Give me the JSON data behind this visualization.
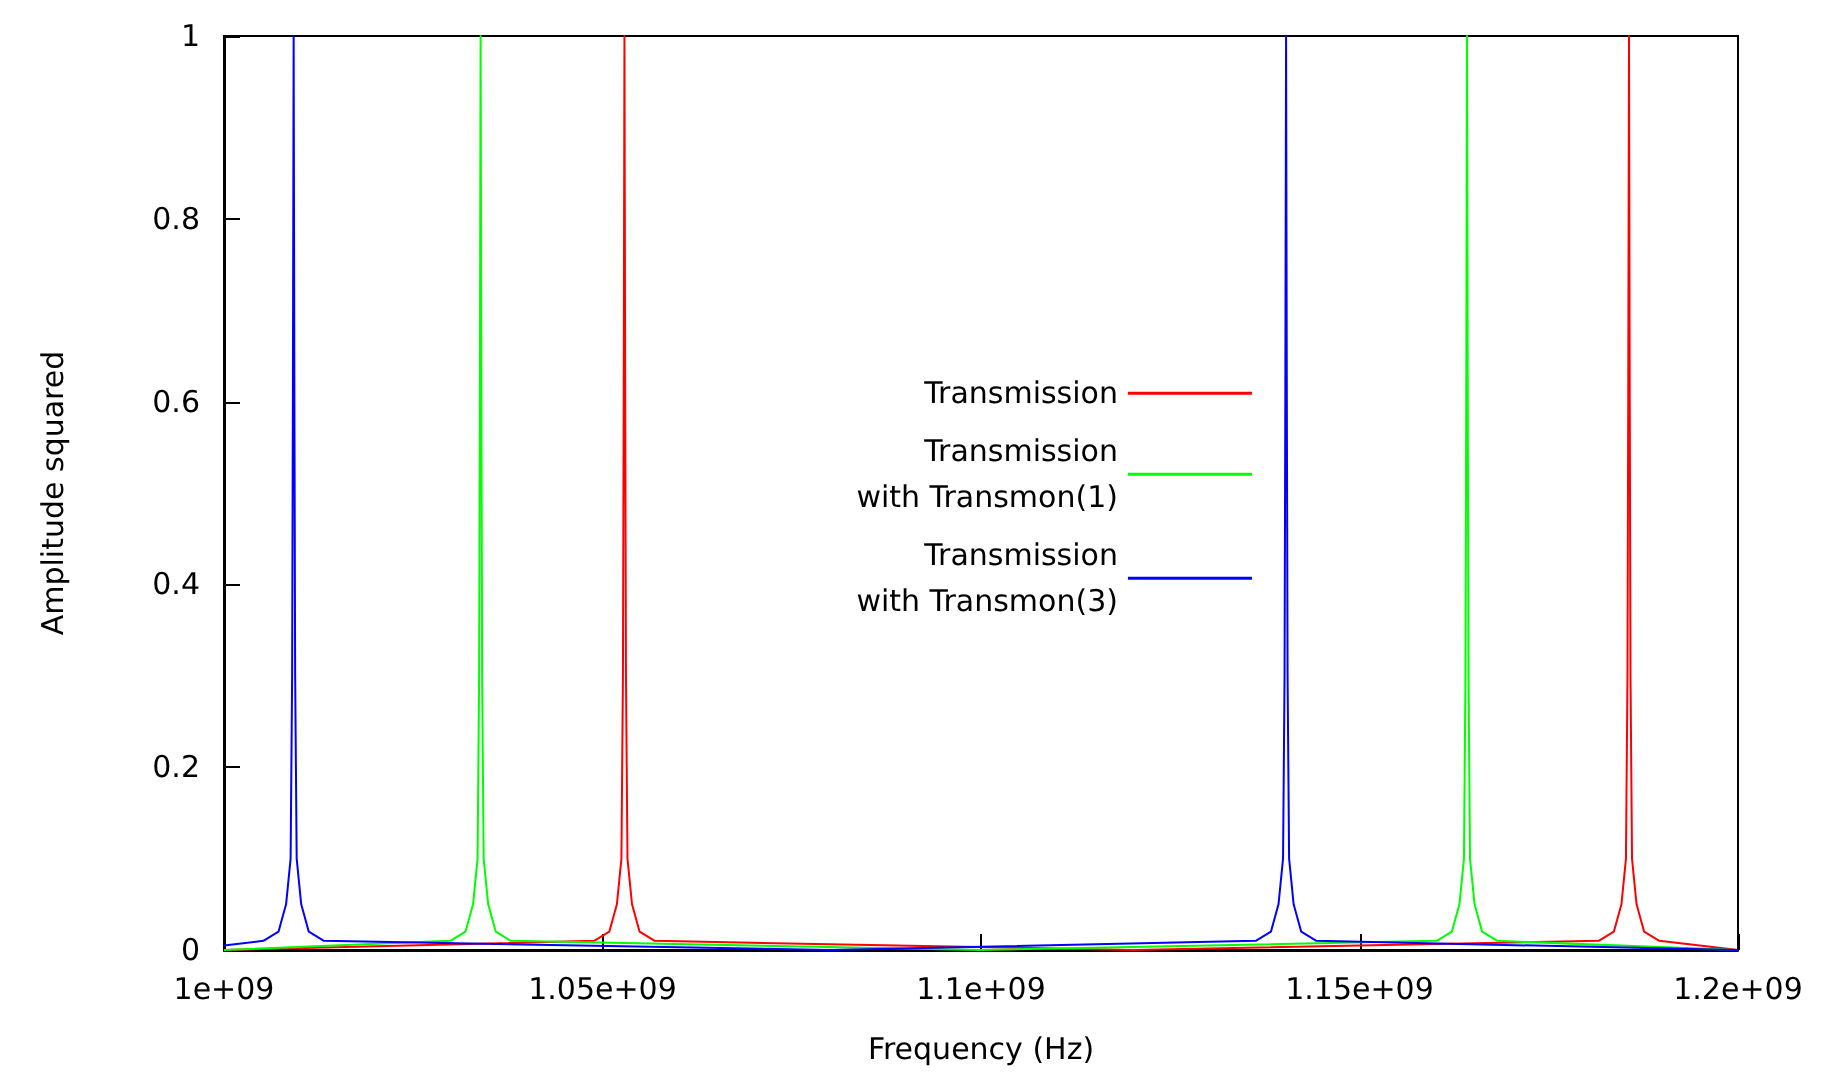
{
  "chart_data": {
    "type": "line",
    "xlabel": "Frequency (Hz)",
    "ylabel": "Amplitude squared",
    "xlim": [
      1000000000,
      1200000000
    ],
    "xticks": [
      {
        "value": 1000000000,
        "label": "1e+09"
      },
      {
        "value": 1050000000,
        "label": "1.05e+09"
      },
      {
        "value": 1100000000,
        "label": "1.1e+09"
      },
      {
        "value": 1150000000,
        "label": "1.15e+09"
      },
      {
        "value": 1200000000,
        "label": "1.2e+09"
      }
    ],
    "ylim": [
      0,
      1
    ],
    "yticks": [
      0,
      0.2,
      0.4,
      0.6,
      0.8,
      1
    ],
    "grid": false,
    "legend": "center",
    "marker": "none",
    "line_style": "solid",
    "series": [
      {
        "name": "Transmission",
        "color": "#ff0000",
        "x": [
          1000000000,
          1048900000,
          1050900000,
          1051900000,
          1052500000,
          1052700000,
          1052800000,
          1052900000,
          1053000000,
          1053100000,
          1053300000,
          1053900000,
          1054900000,
          1056900000,
          1120000000,
          1181600000,
          1183600000,
          1184600000,
          1185200000,
          1185400000,
          1185500000,
          1185600000,
          1185700000,
          1185800000,
          1186000000,
          1186600000,
          1187600000,
          1189600000,
          1200000000
        ],
        "values": [
          0,
          0.01,
          0.02,
          0.05,
          0.1,
          0.3,
          0.6,
          1,
          0.6,
          0.3,
          0.1,
          0.05,
          0.02,
          0.01,
          0,
          0.01,
          0.02,
          0.05,
          0.1,
          0.3,
          0.6,
          1,
          0.6,
          0.3,
          0.1,
          0.05,
          0.02,
          0.01,
          0
        ]
      },
      {
        "name": "Transmission\nwith Transmon(1)",
        "color": "#00ff00",
        "x": [
          1000000000,
          1029900000,
          1031900000,
          1032900000,
          1033500000,
          1033700000,
          1033800000,
          1033900000,
          1034000000,
          1034100000,
          1034300000,
          1034900000,
          1035900000,
          1037900000,
          1100000000,
          1160200000,
          1162200000,
          1163200000,
          1163800000,
          1164000000,
          1164100000,
          1164200000,
          1164300000,
          1164400000,
          1164600000,
          1165200000,
          1166200000,
          1168200000,
          1200000000
        ],
        "values": [
          0,
          0.01,
          0.02,
          0.05,
          0.1,
          0.3,
          0.6,
          1,
          0.6,
          0.3,
          0.1,
          0.05,
          0.02,
          0.01,
          0,
          0.01,
          0.02,
          0.05,
          0.1,
          0.3,
          0.6,
          1,
          0.6,
          0.3,
          0.1,
          0.05,
          0.02,
          0.01,
          0
        ]
      },
      {
        "name": "Transmission\nwith Transmon(3)",
        "color": "#0000ff",
        "x": [
          1000000000,
          1005200000,
          1007200000,
          1008200000,
          1008800000,
          1009000000,
          1009100000,
          1009200000,
          1009300000,
          1009400000,
          1009600000,
          1010200000,
          1011200000,
          1013200000,
          1080000000,
          1136300000,
          1138300000,
          1139300000,
          1139900000,
          1140100000,
          1140200000,
          1140300000,
          1140400000,
          1140500000,
          1140700000,
          1141300000,
          1142300000,
          1144300000,
          1200000000
        ],
        "values": [
          0.005,
          0.01,
          0.02,
          0.05,
          0.1,
          0.3,
          0.6,
          1,
          0.6,
          0.3,
          0.1,
          0.05,
          0.02,
          0.01,
          0,
          0.01,
          0.02,
          0.05,
          0.1,
          0.3,
          0.6,
          1,
          0.6,
          0.3,
          0.1,
          0.05,
          0.02,
          0.01,
          0
        ]
      }
    ]
  }
}
